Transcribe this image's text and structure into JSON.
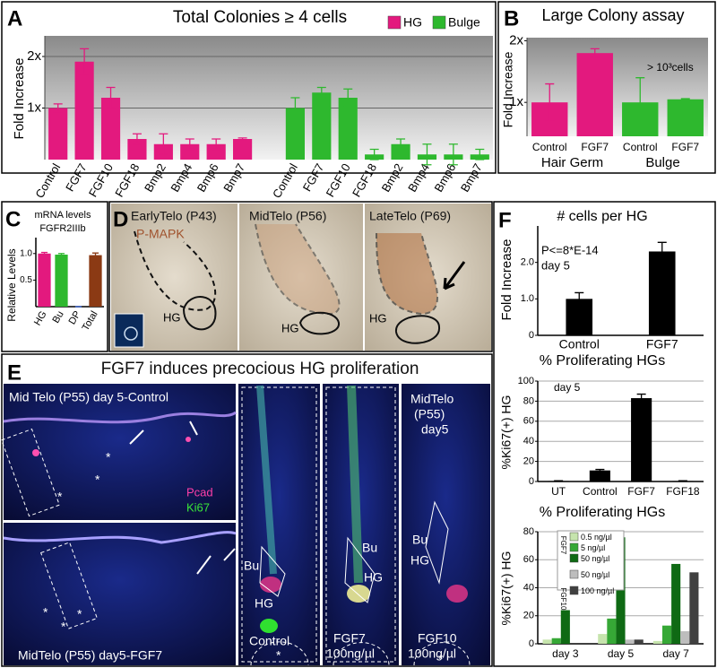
{
  "chart_data": [
    {
      "type": "bar",
      "title": "Total Colonies ≥ 4 cells",
      "y_label": "Fold Increase",
      "categories": [
        "Control",
        "FGF7",
        "FGF10",
        "FGF18",
        "Bmp2",
        "Bmp4",
        "Bmp6",
        "Bmp7",
        null,
        "Control",
        "FGF7",
        "FGF10",
        "FGF18",
        "Bmp2",
        "Bmp4",
        "Bmp6",
        "Bmp7"
      ],
      "series": [
        {
          "name": "HG",
          "color": "#e3197e",
          "values": [
            1.0,
            1.9,
            1.2,
            0.4,
            0.3,
            0.3,
            0.3,
            0.4,
            null,
            null,
            null,
            null,
            null,
            null,
            null,
            null,
            null
          ],
          "errors": [
            0.08,
            0.25,
            0.2,
            0.1,
            0.2,
            0.1,
            0.1,
            0.02,
            null,
            null,
            null,
            null,
            null,
            null,
            null,
            null,
            null
          ]
        },
        {
          "name": "Bulge",
          "color": "#2eb82e",
          "values": [
            null,
            null,
            null,
            null,
            null,
            null,
            null,
            null,
            null,
            1.0,
            1.3,
            1.2,
            0.1,
            0.3,
            0.1,
            0.1,
            0.1
          ],
          "errors": [
            null,
            null,
            null,
            null,
            null,
            null,
            null,
            null,
            null,
            0.2,
            0.1,
            0.17,
            0.1,
            0.1,
            0.2,
            0.2,
            0.1
          ]
        }
      ],
      "ylim": [
        0,
        2.4
      ],
      "yticks": [
        {
          "value": 1,
          "label": "1x"
        },
        {
          "value": 2,
          "label": "2x"
        }
      ],
      "grid": true,
      "legend": "top-right"
    },
    {
      "type": "bar",
      "title": "Large Colony assay",
      "y_label": "Fold Increase",
      "annotations": [
        "> 10³cells"
      ],
      "categories": [
        "Control",
        "FGF7",
        "Control",
        "FGF7"
      ],
      "group_labels": [
        "Hair Germ",
        "Bulge"
      ],
      "series": [
        {
          "name": "HG",
          "color": "#e3197e",
          "values": [
            1.0,
            1.8,
            null,
            null
          ],
          "errors": [
            0.3,
            0.07,
            null,
            null
          ]
        },
        {
          "name": "Bulge",
          "color": "#2eb82e",
          "values": [
            null,
            null,
            1.0,
            1.05
          ],
          "errors": [
            null,
            null,
            0.4,
            0.01
          ]
        }
      ],
      "ylim": [
        0.45,
        2.05
      ],
      "yticks": [
        {
          "value": 1,
          "label": "1x"
        },
        {
          "value": 2,
          "label": "2x"
        }
      ],
      "grid": false
    },
    {
      "type": "bar",
      "title": "mRNA levels",
      "subtitle": "FGFR2IIIb",
      "y_label": "Relative Levels",
      "categories": [
        "HG",
        "Bu",
        "DP",
        "Total"
      ],
      "values": [
        1.0,
        0.98,
        0,
        0.97
      ],
      "errors": [
        0.02,
        0.02,
        0,
        0.04
      ],
      "colors": [
        "#e3197e",
        "#2eb82e",
        "#2a5bd7",
        "#8b3a14"
      ],
      "ylim": [
        0,
        1.3
      ],
      "yticks": [
        0.5,
        {
          "value": 1,
          "label": "1.0"
        }
      ],
      "grid": false
    },
    {
      "type": "bar",
      "title": "# cells per HG",
      "y_label": "Fold Increase",
      "annotations": [
        "P<=8*E-14",
        "day 5"
      ],
      "categories": [
        "Control",
        "FGF7"
      ],
      "values": [
        1.0,
        2.3
      ],
      "errors": [
        0.17,
        0.25
      ],
      "color": "#000000",
      "ylim": [
        0,
        3
      ],
      "yticks": [
        0,
        {
          "value": 1,
          "label": "1.0"
        },
        {
          "value": 2,
          "label": "2.0"
        }
      ],
      "grid": false
    },
    {
      "type": "bar",
      "title": "% Proliferating HGs",
      "y_label": "%Ki67(+) HG",
      "annotations": [
        "day 5"
      ],
      "categories": [
        "UT",
        "Control",
        "FGF7",
        "FGF18"
      ],
      "values": [
        0.5,
        11,
        83,
        0.5
      ],
      "errors": [
        0.3,
        1,
        4,
        0.3
      ],
      "color": "#000000",
      "ylim": [
        0,
        100
      ],
      "yticks": [
        0,
        20,
        40,
        60,
        80,
        100
      ],
      "grid": true
    },
    {
      "type": "bar",
      "title": "% Proliferating HGs",
      "y_label": "%Ki67(+) HG",
      "categories": [
        "day 3",
        "day 5",
        "day 7"
      ],
      "legend_groups": [
        "FGF7",
        "FGF10"
      ],
      "series": [
        {
          "name": "0.5 ng/µl",
          "color": "#c6e4ad",
          "values": [
            3,
            7,
            2
          ]
        },
        {
          "name": "5 ng/µl",
          "color": "#36a836",
          "values": [
            4,
            18,
            13
          ]
        },
        {
          "name": "50 ng/µl",
          "color": "#0f6a14",
          "values": [
            24,
            76,
            57
          ]
        },
        {
          "name": "50 ng/µl",
          "color": "#bdbdbd",
          "values": [
            0,
            3,
            9
          ]
        },
        {
          "name": "100 ng/µl",
          "color": "#404040",
          "values": [
            0,
            3,
            51
          ]
        }
      ],
      "ylim": [
        0,
        80
      ],
      "yticks": [
        0,
        20,
        40,
        60,
        80
      ],
      "grid": true,
      "legend": "top-left"
    }
  ],
  "figure": {
    "panel_letters": [
      "A",
      "B",
      "C",
      "D",
      "E",
      "F"
    ],
    "asterisk": "*",
    "D": {
      "early": "EarlyTelo (P43)",
      "stain": "P-MAPK",
      "mid": "MidTelo (P56)",
      "late": "LateTelo (P69)",
      "hg": "HG"
    },
    "E": {
      "title": "FGF7 induces precocious HG proliferation",
      "top": "Mid Telo (P55) day 5-Control",
      "pcad": "Pcad",
      "ki67": "Ki67",
      "bottom": "MidTelo (P55) day5-FGF7",
      "bu": "Bu",
      "hg": "HG",
      "control": "Control",
      "fgf7": "FGF7",
      "dose": "100ng/µl",
      "c3_1": "MidTelo",
      "c3_2": "(P55)",
      "c3_3": "day5",
      "fgf10": "FGF10"
    }
  }
}
